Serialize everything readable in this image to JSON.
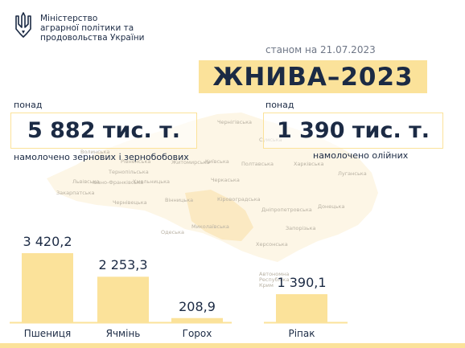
{
  "header": {
    "ministry_lines": [
      "Міністерство",
      "аграрної політики та",
      "продовольства України"
    ],
    "emblem": "trident-icon"
  },
  "date_line": "станом на 21.07.2023",
  "title": "ЖНИВА–2023",
  "grains": {
    "prefix": "понад",
    "value": "5 882 тис. т.",
    "caption": "намолочено зернових і зернобобових"
  },
  "oilseeds": {
    "prefix": "понад",
    "value": "1 390 тис. т.",
    "caption": "намолочено олійних"
  },
  "map_labels": [
    "Чернігівська",
    "Сумська",
    "Волинська",
    "Рівненська",
    "Житомирська",
    "Київська",
    "Полтавська",
    "Харківська",
    "Луганська",
    "Львівська",
    "Тернопільська",
    "Хмельницька",
    "Вінницька",
    "Черкаська",
    "Закарпатська",
    "Івано-Франківська",
    "Чернівецька",
    "Кіровоградська",
    "Дніпропетровська",
    "Донецька",
    "Миколаївська",
    "Запорізька",
    "Одеська",
    "Херсонська",
    "Автономна Республіка Крим"
  ],
  "colors": {
    "accent": "#fbe29a",
    "text": "#1b2a44",
    "muted": "#6e7686"
  },
  "chart_data": [
    {
      "type": "bar",
      "title": "",
      "xlabel": "",
      "ylabel": "",
      "categories": [
        "Пшениця",
        "Ячмінь",
        "Горох"
      ],
      "values": [
        3420.2,
        2253.3,
        208.9
      ],
      "value_labels": [
        "3 420,2",
        "2 253,3",
        "208,9"
      ],
      "grid": false
    },
    {
      "type": "bar",
      "title": "",
      "xlabel": "",
      "ylabel": "",
      "categories": [
        "Ріпак"
      ],
      "values": [
        1390.1
      ],
      "value_labels": [
        "1 390,1"
      ],
      "grid": false
    }
  ]
}
